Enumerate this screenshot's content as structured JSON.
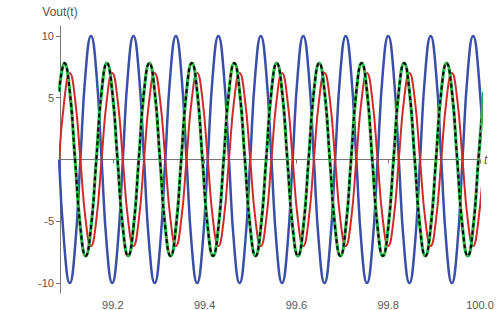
{
  "chart_data": {
    "type": "line",
    "x_label": "t",
    "y_label": "Vout(t)",
    "xlim": [
      99.085,
      100
    ],
    "ylim": [
      -10.8,
      10.8
    ],
    "xticks": [
      99.2,
      99.4,
      99.6,
      99.8,
      {
        "value": 100,
        "label": "100.0"
      }
    ],
    "yticks": [
      -10,
      -5,
      5,
      10
    ],
    "grid": false,
    "x": [
      99.0831,
      99.0947,
      99.1063,
      99.1178,
      99.1294,
      99.1409,
      99.1525,
      99.1641,
      99.1756,
      99.1872,
      99.1988,
      99.2103,
      99.2219,
      99.2334,
      99.245,
      99.2566,
      99.2681,
      99.2797,
      99.2913,
      99.3028,
      99.3144,
      99.3259,
      99.3375,
      99.3491,
      99.3606,
      99.3722,
      99.3838,
      99.3953,
      99.4069,
      99.4184,
      99.43,
      99.4416,
      99.4531,
      99.4647,
      99.4763,
      99.4878,
      99.4994,
      99.5109,
      99.5225,
      99.5341,
      99.5456,
      99.5572,
      99.5688,
      99.5803,
      99.5919,
      99.6034,
      99.615,
      99.6266,
      99.6381,
      99.6497,
      99.6613,
      99.6728,
      99.6844,
      99.6959,
      99.7075,
      99.7191,
      99.7306,
      99.7422,
      99.7538,
      99.7653,
      99.7769,
      99.7884,
      99.8,
      99.8116,
      99.8231,
      99.8347,
      99.8463,
      99.8578,
      99.8694,
      99.8809,
      99.8925,
      99.9041,
      99.9156,
      99.9272,
      99.9388,
      99.9503,
      99.9619,
      99.9734,
      99.985,
      99.9966,
      100.0081
    ],
    "series": [
      {
        "color": "#3a4fa8",
        "line_style": "solid",
        "values": [
          0,
          -7.1,
          -10,
          -7.1,
          0,
          7.1,
          10,
          7.1,
          0,
          -7.1,
          -10,
          -7.1,
          0,
          7.1,
          10,
          7.1,
          0,
          -7.1,
          -10,
          -7.1,
          0,
          7.1,
          10,
          7.1,
          0,
          -7.1,
          -10,
          -7.1,
          0,
          7.1,
          10,
          7.1,
          0,
          -7.1,
          -10,
          -7.1,
          0,
          7.1,
          10,
          7.1,
          0,
          -7.1,
          -10,
          -7.1,
          0,
          7.1,
          10,
          7.1,
          0,
          -7.1,
          -10,
          -7.1,
          0,
          7.1,
          10,
          7.1,
          0,
          -7.1,
          -10,
          -7.1,
          0,
          7.1,
          10,
          7.1,
          0,
          -7.1,
          -10,
          -7.1,
          0,
          7.1,
          10,
          7.1,
          0,
          -7.1,
          -10,
          -7.1,
          0,
          7.1,
          10,
          7.1,
          0
        ]
      },
      {
        "color": "#d02a2a",
        "line_style": "solid",
        "values": [
          0,
          4.9,
          7,
          4.9,
          0,
          -4.9,
          -7,
          -4.9,
          0,
          4.9,
          7,
          4.9,
          0,
          -4.9,
          -7,
          -4.9,
          0,
          4.9,
          7,
          4.9,
          0,
          -4.9,
          -7,
          -4.9,
          0,
          4.9,
          7,
          4.9,
          0,
          -4.9,
          -7,
          -4.9,
          0,
          4.9,
          7,
          4.9,
          0,
          -4.9,
          -7,
          -4.9,
          0,
          4.9,
          7,
          4.9,
          0,
          -4.9,
          -7,
          -4.9,
          0,
          4.9,
          7,
          4.9,
          0,
          -4.9,
          -7,
          -4.9,
          0,
          4.9,
          7,
          4.9,
          0,
          -4.9,
          -7,
          -4.9,
          0,
          4.9,
          7,
          4.9,
          0,
          -4.9,
          -7,
          -4.9,
          0,
          4.9,
          7,
          4.9,
          0,
          -4.9,
          -7,
          -4.9,
          0
        ]
      },
      {
        "color": "#33b04a",
        "line_style": "solid",
        "values": [
          5.5,
          7.8,
          5.5,
          0,
          -5.5,
          -7.8,
          -5.5,
          0,
          5.5,
          7.8,
          5.5,
          0,
          -5.5,
          -7.8,
          -5.5,
          0,
          5.5,
          7.8,
          5.5,
          0,
          -5.5,
          -7.8,
          -5.5,
          0,
          5.5,
          7.8,
          5.5,
          0,
          -5.5,
          -7.8,
          -5.5,
          0,
          5.5,
          7.8,
          5.5,
          0,
          -5.5,
          -7.8,
          -5.5,
          0,
          5.5,
          7.8,
          5.5,
          0,
          -5.5,
          -7.8,
          -5.5,
          0,
          5.5,
          7.8,
          5.5,
          0,
          -5.5,
          -7.8,
          -5.5,
          0,
          5.5,
          7.8,
          5.5,
          0,
          -5.5,
          -7.8,
          -5.5,
          0,
          5.5,
          7.8,
          5.5,
          0,
          -5.5,
          -7.8,
          -5.5,
          0,
          5.5,
          7.8,
          5.5,
          0,
          -5.5,
          -7.8,
          -5.5,
          0,
          5.5
        ]
      },
      {
        "color": "#000000",
        "line_style": "dashed",
        "values": [
          5.5,
          7.8,
          5.5,
          0,
          -5.5,
          -7.8,
          -5.5,
          0,
          5.5,
          7.8,
          5.5,
          0,
          -5.5,
          -7.8,
          -5.5,
          0,
          5.5,
          7.8,
          5.5,
          0,
          -5.5,
          -7.8,
          -5.5,
          0,
          5.5,
          7.8,
          5.5,
          0,
          -5.5,
          -7.8,
          -5.5,
          0,
          5.5,
          7.8,
          5.5,
          0,
          -5.5,
          -7.8,
          -5.5,
          0,
          5.5,
          7.8,
          5.5,
          0,
          -5.5,
          -7.8,
          -5.5,
          0,
          5.5,
          7.8,
          5.5,
          0,
          -5.5,
          -7.8,
          -5.5,
          0,
          5.5,
          7.8,
          5.5,
          0,
          -5.5,
          -7.8,
          -5.5,
          0,
          5.5,
          7.8,
          5.5,
          0,
          -5.5,
          -7.8,
          -5.5,
          0,
          5.5,
          7.8,
          5.5,
          0,
          -5.5,
          -7.8,
          -5.5,
          0,
          5.5
        ]
      }
    ]
  }
}
